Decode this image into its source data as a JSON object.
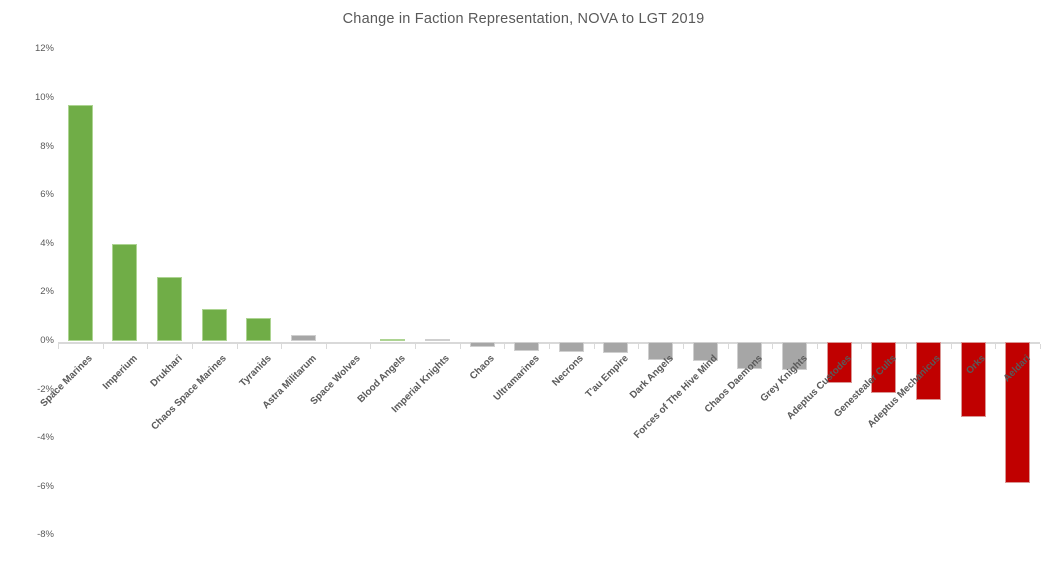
{
  "chart_data": {
    "type": "bar",
    "title": "Change in Faction Representation, NOVA to LGT 2019",
    "categories": [
      "Space Marines",
      "Imperium",
      "Drukhari",
      "Chaos Space Marines",
      "Tyranids",
      "Astra Militarum",
      "Space Wolves",
      "Blood Angels",
      "Imperial Knights",
      "Chaos",
      "Ultramarines",
      "Necrons",
      "T'au Empire",
      "Dark Angels",
      "Forces of The Hive Mind",
      "Chaos Daemons",
      "Grey Knights",
      "Adeptus Custodes",
      "Genestealer Cults",
      "Adeptus Mechanicus",
      "Orks",
      "Aeldari"
    ],
    "values": [
      9.7,
      4.0,
      2.65,
      1.3,
      0.95,
      0.25,
      0.0,
      0.1,
      0.1,
      -0.2,
      -0.35,
      -0.4,
      -0.45,
      -0.75,
      -0.8,
      -1.1,
      -1.15,
      -1.7,
      -2.1,
      -2.4,
      -3.1,
      -5.8
    ],
    "value_unit": "%",
    "bar_colors": [
      "green",
      "green",
      "green",
      "green",
      "green",
      "gray",
      "gray",
      "green",
      "gray",
      "gray",
      "gray",
      "gray",
      "gray",
      "gray",
      "gray",
      "gray",
      "gray",
      "red",
      "red",
      "red",
      "red",
      "red"
    ],
    "palette": {
      "green": "#70AD47",
      "gray": "#A6A6A6",
      "red": "#C00000"
    },
    "palette_edges": {
      "green": "#ADD492",
      "gray": "#CFCFCF",
      "red": "#DA9694"
    },
    "xlabel": "",
    "ylabel": "",
    "ylim": [
      -8,
      12
    ],
    "ytick_labels": [
      "12%",
      "10%",
      "8%",
      "6%",
      "4%",
      "2%",
      "0%",
      "-2%",
      "-4%",
      "-6%",
      "-8%"
    ],
    "grid": false,
    "legend": false,
    "axis_color": "#D9D9D9",
    "text_color": "#595959"
  }
}
